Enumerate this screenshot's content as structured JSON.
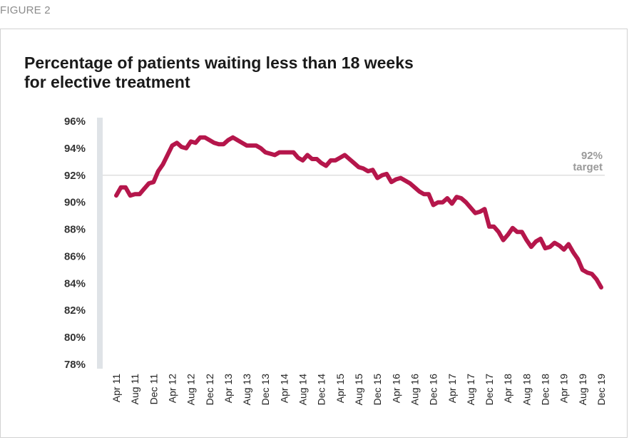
{
  "figure_label": "FIGURE 2",
  "chart_data": {
    "type": "line",
    "title_line1": "Percentage of patients waiting less than 18 weeks",
    "title_line2": "for elective treatment",
    "xlabel": "",
    "ylabel": "",
    "ylim": [
      78,
      96
    ],
    "yticks": [
      "96%",
      "94%",
      "92%",
      "90%",
      "88%",
      "86%",
      "84%",
      "82%",
      "80%",
      "78%"
    ],
    "ytick_values": [
      96,
      94,
      92,
      90,
      88,
      86,
      84,
      82,
      80,
      78
    ],
    "xtick_labels": [
      "Apr 11",
      "Aug 11",
      "Dec 11",
      "Apr 12",
      "Aug 12",
      "Dec 12",
      "Apr 13",
      "Aug 13",
      "Dec 13",
      "Apr 14",
      "Aug 14",
      "Dec 14",
      "Apr 15",
      "Aug 15",
      "Dec 15",
      "Apr 16",
      "Aug 16",
      "Dec 16",
      "Apr 17",
      "Aug 17",
      "Dec 17",
      "Apr 18",
      "Aug 18",
      "Dec 18",
      "Apr 19",
      "Aug 19",
      "Dec 19"
    ],
    "target": {
      "value": 92,
      "label_line1": "92%",
      "label_line2": "target"
    },
    "series": [
      {
        "color": "#b5164b",
        "values": [
          90.5,
          91.1,
          91.1,
          90.5,
          90.6,
          90.6,
          91.0,
          91.4,
          91.5,
          92.3,
          92.8,
          93.5,
          94.2,
          94.4,
          94.1,
          94.0,
          94.5,
          94.4,
          94.8,
          94.8,
          94.6,
          94.4,
          94.3,
          94.3,
          94.6,
          94.8,
          94.6,
          94.4,
          94.2,
          94.2,
          94.2,
          94.0,
          93.7,
          93.6,
          93.5,
          93.7,
          93.7,
          93.7,
          93.7,
          93.3,
          93.1,
          93.5,
          93.2,
          93.2,
          92.9,
          92.7,
          93.1,
          93.1,
          93.3,
          93.5,
          93.2,
          92.9,
          92.6,
          92.5,
          92.3,
          92.4,
          91.8,
          92.0,
          92.1,
          91.5,
          91.7,
          91.8,
          91.6,
          91.4,
          91.1,
          90.8,
          90.6,
          90.6,
          89.8,
          90.0,
          90.0,
          90.3,
          89.9,
          90.4,
          90.3,
          90.0,
          89.6,
          89.2,
          89.3,
          89.5,
          88.2,
          88.2,
          87.8,
          87.2,
          87.6,
          88.1,
          87.8,
          87.8,
          87.2,
          86.7,
          87.1,
          87.3,
          86.6,
          86.7,
          87.0,
          86.8,
          86.5,
          86.9,
          86.3,
          85.8,
          85.0,
          84.8,
          84.7,
          84.3,
          83.7
        ]
      }
    ],
    "grid": false,
    "legend": "none"
  }
}
